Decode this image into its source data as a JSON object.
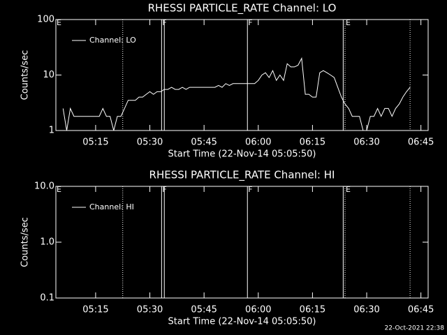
{
  "chart_data": [
    {
      "type": "line",
      "title": "RHESSI PARTICLE_RATE Channel: LO",
      "y_label": "Counts/sec",
      "x_label": "Start Time (22-Nov-14 05:05:50)",
      "log_y": true,
      "ylim": [
        1,
        100
      ],
      "yticks": [
        1,
        10,
        100
      ],
      "xlim": [
        "05:04",
        "06:47"
      ],
      "xticks": [
        "05:15",
        "05:30",
        "05:45",
        "06:00",
        "06:15",
        "06:30",
        "06:45"
      ],
      "x": [
        "05:06",
        "05:07",
        "05:08",
        "05:09",
        "05:10",
        "05:11",
        "05:12",
        "05:13",
        "05:14",
        "05:15",
        "05:16",
        "05:17",
        "05:18",
        "05:19",
        "05:20",
        "05:21",
        "05:22",
        "05:23",
        "05:24",
        "05:25",
        "05:26",
        "05:27",
        "05:28",
        "05:29",
        "05:30",
        "05:31",
        "05:32",
        "05:33",
        "05:34",
        "05:35",
        "05:36",
        "05:37",
        "05:38",
        "05:39",
        "05:40",
        "05:41",
        "05:42",
        "05:43",
        "05:44",
        "05:45",
        "05:46",
        "05:47",
        "05:48",
        "05:49",
        "05:50",
        "05:51",
        "05:52",
        "05:53",
        "05:54",
        "05:55",
        "05:56",
        "05:57",
        "05:58",
        "05:59",
        "06:00",
        "06:01",
        "06:02",
        "06:03",
        "06:04",
        "06:05",
        "06:06",
        "06:07",
        "06:08",
        "06:09",
        "06:10",
        "06:11",
        "06:12",
        "06:13",
        "06:14",
        "06:15",
        "06:16",
        "06:17",
        "06:18",
        "06:19",
        "06:20",
        "06:21",
        "06:22",
        "06:23",
        "06:24",
        "06:25",
        "06:26",
        "06:27",
        "06:28",
        "06:29",
        "06:30",
        "06:31",
        "06:32",
        "06:33",
        "06:34",
        "06:35",
        "06:36",
        "06:37",
        "06:38",
        "06:39",
        "06:40",
        "06:41",
        "06:42"
      ],
      "series": [
        {
          "name": "Channel: LO",
          "color": "#ffffff",
          "values": [
            2.5,
            1,
            2.5,
            1.8,
            1.8,
            1.8,
            1.8,
            1.8,
            1.8,
            1.8,
            1.8,
            2.5,
            1.8,
            1.8,
            1,
            1.8,
            1.8,
            2.5,
            3.5,
            3.5,
            3.5,
            4,
            4,
            4.5,
            5,
            4.5,
            5,
            5,
            5.5,
            5.5,
            6,
            5.5,
            5.5,
            6,
            5.5,
            6,
            6,
            6,
            6,
            6,
            6,
            6,
            6,
            6.5,
            6,
            7,
            6.5,
            7,
            7,
            7,
            7,
            7,
            7,
            7,
            8,
            10,
            11,
            9,
            12,
            8,
            10,
            8,
            16,
            14,
            14,
            15,
            20,
            4.5,
            4.5,
            4,
            4,
            11,
            12,
            11,
            10,
            9,
            6,
            4,
            3,
            2.5,
            1.8,
            1.8,
            1.8,
            1,
            1,
            1.8,
            1.8,
            2.5,
            1.8,
            2.5,
            2.5,
            1.8,
            2.5,
            3,
            4,
            5,
            6
          ]
        }
      ],
      "lines": [
        {
          "x": "05:22:30",
          "style": "dotted"
        },
        {
          "x": "05:33:15",
          "style": "solid"
        },
        {
          "x": "05:34",
          "style": "solid"
        },
        {
          "x": "05:57",
          "style": "solid"
        },
        {
          "x": "06:23:30",
          "style": "solid"
        },
        {
          "x": "06:24",
          "style": "dotted"
        },
        {
          "x": "06:42",
          "style": "dotted"
        }
      ],
      "events": [
        {
          "x": "05:04",
          "label": "E"
        },
        {
          "x": "05:33:15",
          "label": "F"
        },
        {
          "x": "05:57",
          "label": "F"
        },
        {
          "x": "06:24",
          "label": "E"
        }
      ]
    },
    {
      "type": "line",
      "title": "RHESSI PARTICLE_RATE Channel: HI",
      "y_label": "Counts/sec",
      "x_label": "Start Time (22-Nov-14 05:05:50)",
      "log_y": true,
      "ylim": [
        0.1,
        10
      ],
      "yticks": [
        0.1,
        {
          "value": 1,
          "label": "1.0"
        },
        {
          "value": 10,
          "label": "10.0"
        }
      ],
      "xlim": [
        "05:04",
        "06:47"
      ],
      "xticks": [
        "05:15",
        "05:30",
        "05:45",
        "06:00",
        "06:15",
        "06:30",
        "06:45"
      ],
      "series": [
        {
          "name": "Channel: HI",
          "color": "#ffffff"
        }
      ],
      "lines": [
        {
          "x": "05:22:30",
          "style": "dotted"
        },
        {
          "x": "05:33:15",
          "style": "solid"
        },
        {
          "x": "05:34",
          "style": "solid"
        },
        {
          "x": "05:57",
          "style": "solid"
        },
        {
          "x": "06:23:30",
          "style": "solid"
        },
        {
          "x": "06:24",
          "style": "dotted"
        },
        {
          "x": "06:42",
          "style": "dotted"
        }
      ],
      "events": [
        {
          "x": "05:04",
          "label": "E"
        },
        {
          "x": "05:33:15",
          "label": "F"
        },
        {
          "x": "05:57",
          "label": "F"
        },
        {
          "x": "06:24",
          "label": "E"
        }
      ]
    }
  ],
  "footer": "22-Oct-2021 22:38"
}
